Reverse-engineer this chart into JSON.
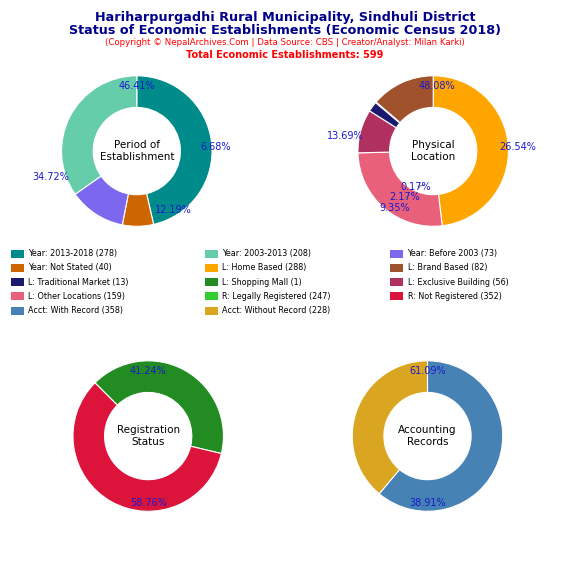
{
  "title_line1": "Hariharpurgadhi Rural Municipality, Sindhuli District",
  "title_line2": "Status of Economic Establishments (Economic Census 2018)",
  "subtitle": "(Copyright © NepalArchives.Com | Data Source: CBS | Creator/Analyst: Milan Karki)",
  "total_line": "Total Economic Establishments: 599",
  "title_color": "#00008B",
  "subtitle_color": "#FF0000",
  "pct_color": "#1a1acd",
  "pie1_label": "Period of\nEstablishment",
  "pie1_values": [
    46.41,
    6.68,
    12.19,
    34.72
  ],
  "pie1_colors": [
    "#008B8B",
    "#CD6600",
    "#7B68EE",
    "#66CDAA"
  ],
  "pie1_pcts": [
    "46.41%",
    "6.68%",
    "12.19%",
    "34.72%"
  ],
  "pie1_startangle": 90,
  "pie2_label": "Physical\nLocation",
  "pie2_values": [
    48.08,
    26.54,
    9.35,
    2.17,
    0.17,
    13.69
  ],
  "pie2_colors": [
    "#FFA500",
    "#E8607A",
    "#B03060",
    "#191970",
    "#777777",
    "#A0522D"
  ],
  "pie2_pcts": [
    "48.08%",
    "26.54%",
    "9.35%",
    "2.17%",
    "0.17%",
    "13.69%"
  ],
  "pie2_startangle": 90,
  "pie3_label": "Registration\nStatus",
  "pie3_values": [
    41.24,
    58.76
  ],
  "pie3_colors": [
    "#228B22",
    "#DC143C"
  ],
  "pie3_pcts": [
    "41.24%",
    "58.76%"
  ],
  "pie3_startangle": 135,
  "pie4_label": "Accounting\nRecords",
  "pie4_values": [
    61.09,
    38.91
  ],
  "pie4_colors": [
    "#4682B4",
    "#DAA520"
  ],
  "pie4_pcts": [
    "61.09%",
    "38.91%"
  ],
  "pie4_startangle": 90,
  "legend_items": [
    {
      "label": "Year: 2013-2018 (278)",
      "color": "#008B8B"
    },
    {
      "label": "Year: 2003-2013 (208)",
      "color": "#66CDAA"
    },
    {
      "label": "Year: Before 2003 (73)",
      "color": "#7B68EE"
    },
    {
      "label": "Year: Not Stated (40)",
      "color": "#CD6600"
    },
    {
      "label": "L: Home Based (288)",
      "color": "#FFA500"
    },
    {
      "label": "L: Brand Based (82)",
      "color": "#A0522D"
    },
    {
      "label": "L: Traditional Market (13)",
      "color": "#191970"
    },
    {
      "label": "L: Shopping Mall (1)",
      "color": "#228B22"
    },
    {
      "label": "L: Exclusive Building (56)",
      "color": "#B03060"
    },
    {
      "label": "L: Other Locations (159)",
      "color": "#E8607A"
    },
    {
      "label": "R: Legally Registered (247)",
      "color": "#32CD32"
    },
    {
      "label": "R: Not Registered (352)",
      "color": "#DC143C"
    },
    {
      "label": "Acct: With Record (358)",
      "color": "#4682B4"
    },
    {
      "label": "Acct: Without Record (228)",
      "color": "#DAA520"
    }
  ],
  "bg_color": "#FFFFFF"
}
